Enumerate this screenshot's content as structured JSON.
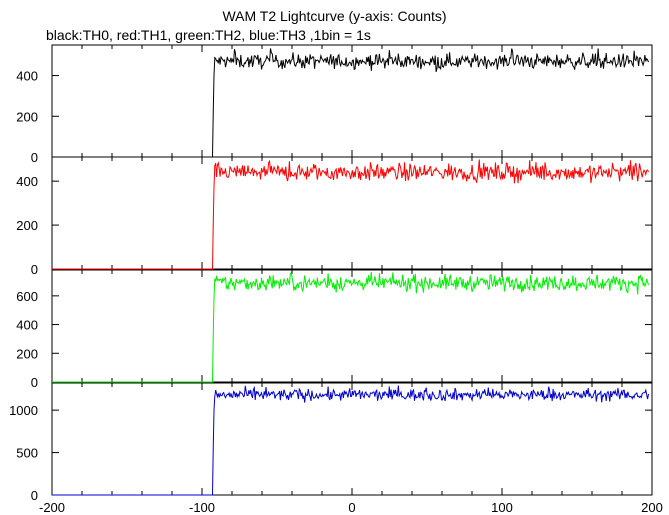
{
  "chart_data": {
    "type": "line",
    "title": "WAM T2 Lightcurve (y-axis: Counts)",
    "subtitle": "black:TH0, red:TH1, green:TH2, blue:TH3 ,1bin = 1s",
    "xlim": [
      -200,
      200
    ],
    "x_ticks": [
      "-200",
      "-100",
      "0",
      "100",
      "200"
    ],
    "x_tick_values": [
      -200,
      -100,
      0,
      100,
      200
    ],
    "trigger_x": -93,
    "x_end": 198,
    "panels": [
      {
        "series": "TH0",
        "color": "#000000",
        "ylim": [
          0,
          550
        ],
        "y_ticks": [
          "0",
          "200",
          "400"
        ],
        "y_tick_values": [
          0,
          200,
          400
        ],
        "pre_level": 0,
        "post_level": 470,
        "noise": 18,
        "peak": 535
      },
      {
        "series": "TH1",
        "color": "#ff0000",
        "ylim": [
          0,
          510
        ],
        "y_ticks": [
          "0",
          "200",
          "400"
        ],
        "y_tick_values": [
          0,
          200,
          400
        ],
        "pre_level": 0,
        "post_level": 440,
        "noise": 20,
        "peak": 500
      },
      {
        "series": "TH2",
        "color": "#00ee00",
        "ylim": [
          0,
          780
        ],
        "y_ticks": [
          "0",
          "200",
          "400",
          "600"
        ],
        "y_tick_values": [
          0,
          200,
          400,
          600
        ],
        "pre_level": 0,
        "post_level": 690,
        "noise": 28,
        "peak": 770
      },
      {
        "series": "TH3",
        "color": "#0000cc",
        "ylim": [
          0,
          1320
        ],
        "y_ticks": [
          "0",
          "500",
          "1000"
        ],
        "y_tick_values": [
          0,
          500,
          1000
        ],
        "pre_level": 0,
        "post_level": 1180,
        "noise": 35,
        "peak": 1300
      }
    ],
    "grid": false,
    "legend": "none"
  }
}
